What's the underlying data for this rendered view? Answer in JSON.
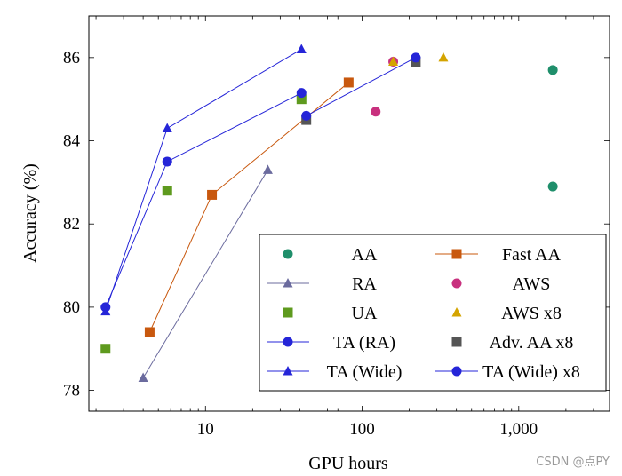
{
  "watermark": "CSDN @点PY",
  "chart_data": {
    "type": "scatter",
    "xlabel": "GPU hours",
    "ylabel": "Accuracy (%)",
    "xscale": "log",
    "xlim": [
      1.8,
      3800
    ],
    "ylim": [
      77.5,
      87
    ],
    "xticks": [
      {
        "v": 10,
        "label": "10"
      },
      {
        "v": 100,
        "label": "100"
      },
      {
        "v": 1000,
        "label": "1,000"
      }
    ],
    "yticks": [
      {
        "v": 78,
        "label": "78"
      },
      {
        "v": 80,
        "label": "80"
      },
      {
        "v": 82,
        "label": "82"
      },
      {
        "v": 84,
        "label": "84"
      },
      {
        "v": 86,
        "label": "86"
      }
    ],
    "legend_position": "bottom-right",
    "series": [
      {
        "name": "AA",
        "marker": "circle",
        "color": "#1f8f6b",
        "line": false,
        "points": [
          [
            1650,
            85.7
          ],
          [
            1650,
            82.9
          ]
        ]
      },
      {
        "name": "Fast AA",
        "marker": "square",
        "color": "#c8580e",
        "line": true,
        "points": [
          [
            4.4,
            79.4
          ],
          [
            11,
            82.7
          ],
          [
            82,
            85.4
          ]
        ]
      },
      {
        "name": "RA",
        "marker": "triangle",
        "color": "#6b6b9e",
        "line": true,
        "points": [
          [
            4,
            78.3
          ],
          [
            25,
            83.3
          ]
        ]
      },
      {
        "name": "AWS",
        "marker": "circle",
        "color": "#c8307e",
        "line": false,
        "points": [
          [
            122,
            84.7
          ],
          [
            158,
            85.9
          ]
        ]
      },
      {
        "name": "UA",
        "marker": "square",
        "color": "#5e9a1e",
        "line": false,
        "points": [
          [
            2.3,
            79.0
          ],
          [
            5.7,
            82.8
          ],
          [
            41,
            85.0
          ]
        ]
      },
      {
        "name": "AWS x8",
        "marker": "triangle",
        "color": "#d4a400",
        "line": false,
        "points": [
          [
            158,
            85.9
          ],
          [
            330,
            86.0
          ]
        ]
      },
      {
        "name": "TA (RA)",
        "marker": "circle",
        "color": "#2525d8",
        "line": true,
        "points": [
          [
            2.3,
            80.0
          ],
          [
            5.7,
            83.5
          ],
          [
            41,
            85.15
          ]
        ]
      },
      {
        "name": "Adv. AA x8",
        "marker": "square",
        "color": "#555555",
        "line": false,
        "points": [
          [
            44,
            84.5
          ],
          [
            220,
            85.9
          ]
        ]
      },
      {
        "name": "TA (Wide)",
        "marker": "triangle",
        "color": "#2525d8",
        "line": true,
        "points": [
          [
            2.3,
            79.9
          ],
          [
            5.7,
            84.3
          ],
          [
            41,
            86.2
          ]
        ]
      },
      {
        "name": "TA (Wide) x8",
        "marker": "circle",
        "color": "#2525d8",
        "line": true,
        "points": [
          [
            44,
            84.6
          ],
          [
            220,
            86.0
          ]
        ]
      }
    ]
  }
}
